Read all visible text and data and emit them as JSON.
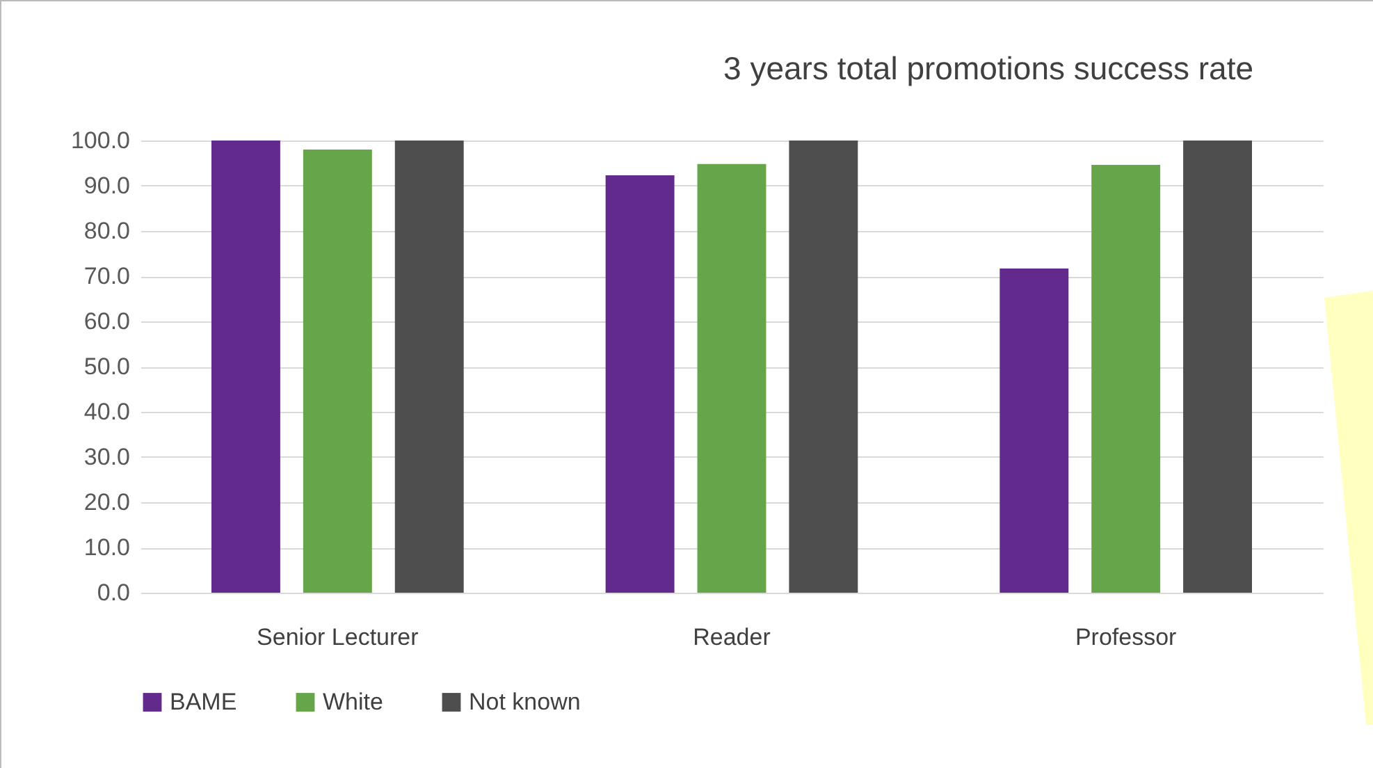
{
  "chart_data": {
    "type": "bar",
    "title": "3 years total promotions success rate",
    "categories": [
      "Senior Lecturer",
      "Reader",
      "Professor"
    ],
    "series": [
      {
        "name": "BAME",
        "color": "#632a8e",
        "values": [
          100,
          92.3,
          71.7
        ]
      },
      {
        "name": "White",
        "color": "#66a54a",
        "values": [
          98,
          94.8,
          94.6
        ]
      },
      {
        "name": "Not known",
        "color": "#4e4e4e",
        "values": [
          100,
          100,
          100
        ]
      }
    ],
    "ylim": [
      0,
      100
    ],
    "yticks": [
      {
        "value": 0,
        "label": "0.0"
      },
      {
        "value": 10,
        "label": "10.0"
      },
      {
        "value": 20,
        "label": "20.0"
      },
      {
        "value": 30,
        "label": "30.0"
      },
      {
        "value": 40,
        "label": "40.0"
      },
      {
        "value": 50,
        "label": "50.0"
      },
      {
        "value": 60,
        "label": "60.0"
      },
      {
        "value": 70,
        "label": "70.0"
      },
      {
        "value": 80,
        "label": "80.0"
      },
      {
        "value": 90,
        "label": "90.0"
      },
      {
        "value": 100,
        "label": "100.0"
      }
    ],
    "grid": "y",
    "legend": "bottom"
  }
}
